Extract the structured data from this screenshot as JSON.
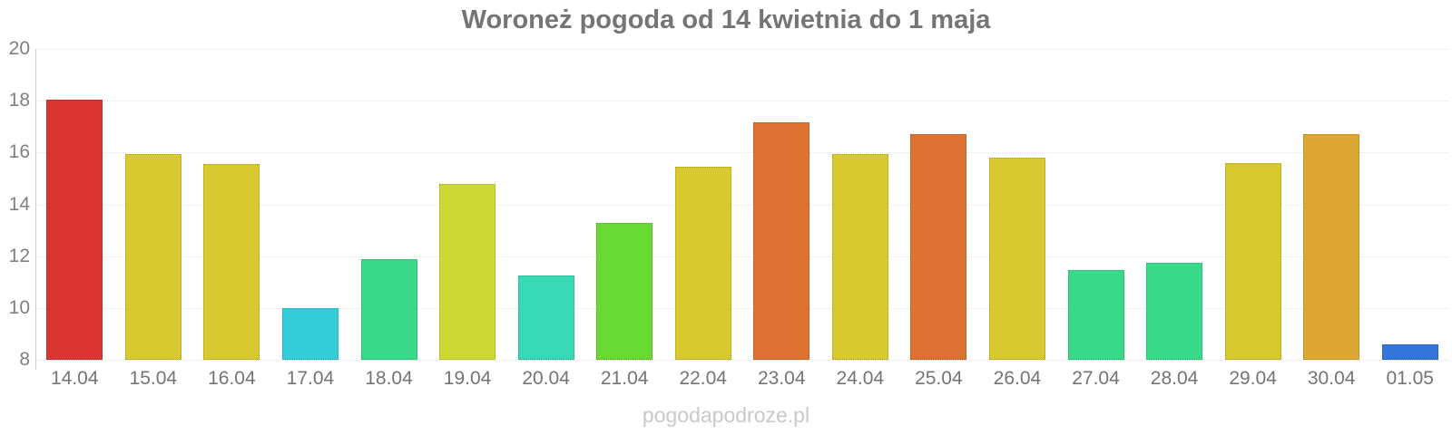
{
  "chart_data": {
    "type": "bar",
    "title": "Woroneż pogoda od 14 kwietnia do 1 maja",
    "categories": [
      "14.04",
      "15.04",
      "16.04",
      "17.04",
      "18.04",
      "19.04",
      "20.04",
      "21.04",
      "22.04",
      "23.04",
      "24.04",
      "25.04",
      "26.04",
      "27.04",
      "28.04",
      "29.04",
      "30.04",
      "01.05"
    ],
    "values": [
      18.05,
      15.95,
      15.55,
      10.0,
      11.9,
      14.8,
      11.25,
      13.3,
      15.45,
      17.15,
      15.95,
      16.7,
      15.8,
      11.45,
      11.75,
      15.6,
      16.7,
      8.6
    ],
    "bar_colors": [
      "#d93430",
      "#d9c930",
      "#d9c930",
      "#35ccd9",
      "#38d989",
      "#ccd935",
      "#38d9b5",
      "#69d933",
      "#d9c930",
      "#de7233",
      "#d9c930",
      "#de7233",
      "#d9c930",
      "#38d989",
      "#38d989",
      "#d9c930",
      "#dda732",
      "#3377dd"
    ],
    "xlabel": "",
    "ylabel": "",
    "ylim": [
      8,
      20
    ],
    "yticks": [
      8,
      10,
      12,
      14,
      16,
      18,
      20
    ],
    "grid": "horizontal-dotted",
    "legend": "none",
    "watermark": "pogodapodroze.pl",
    "title_color": "#757575",
    "axis_label_color": "#808080",
    "watermark_color": "#c9c9c9"
  }
}
